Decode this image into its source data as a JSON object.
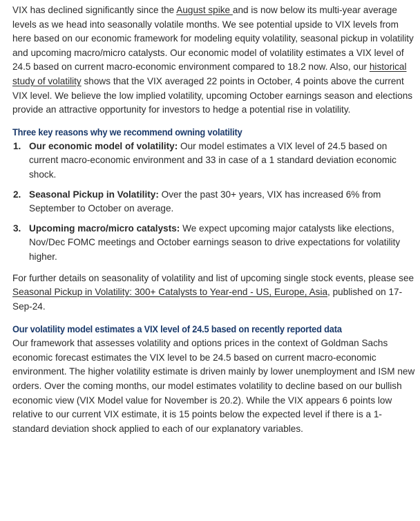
{
  "intro": {
    "t1": "VIX has declined significantly since the ",
    "link1": "August spike ",
    "t2": "and is now below its multi-year average levels as we head into seasonally volatile months. We see potential upside to VIX levels from here based on our economic framework for modeling equity volatility, seasonal pickup in volatility and upcoming macro/micro catalysts. Our economic model of volatility estimates a VIX level of 24.5 based on current macro-economic environment compared to 18.2 now. Also, our ",
    "link2": "historical study of volatility",
    "t3": " shows that the VIX averaged 22 points in October, 4 points above the current VIX level. We believe the low implied volatility, upcoming October earnings season and elections provide an attractive opportunity for investors to hedge a potential rise in volatility."
  },
  "section1": {
    "heading": "Three key reasons why we recommend owning volatility",
    "items": [
      {
        "number": "1.",
        "title": "Our economic model of volatility:",
        "body": " Our model estimates a VIX level of 24.5 based on current macro-economic environment and 33 in case of a 1 standard deviation economic shock."
      },
      {
        "number": "2.",
        "title": "Seasonal Pickup in Volatility:",
        "body": " Over the past 30+ years, VIX has increased 6% from September to October on average."
      },
      {
        "number": "3.",
        "title": "Upcoming macro/micro catalysts:",
        "body": " We expect upcoming major catalysts like elections, Nov/Dec FOMC meetings and October earnings season to drive expectations for volatility higher."
      }
    ],
    "further_t1": "For further details on seasonality of volatility and list of upcoming single stock events, please see ",
    "further_link": "Seasonal Pickup in Volatility: 300+ Catalysts to Year-end - US, Europe, Asia",
    "further_t2": ", published on 17-Sep-24."
  },
  "section2": {
    "heading": "Our volatility model estimates a VIX level of 24.5 based on recently reported data",
    "body": "Our framework that assesses volatility and options prices in the context of Goldman Sachs economic forecast estimates the VIX level to be 24.5 based on current macro-economic environment. The higher volatility estimate is driven mainly by lower unemployment and ISM new orders. Over the coming months, our model estimates volatility to decline based on our bullish economic view (VIX Model value for November is 20.2). While the VIX appears 6 points low relative to our current VIX estimate, it is 15 points below the expected level if there is a 1-standard deviation shock applied to each of our explanatory variables."
  }
}
